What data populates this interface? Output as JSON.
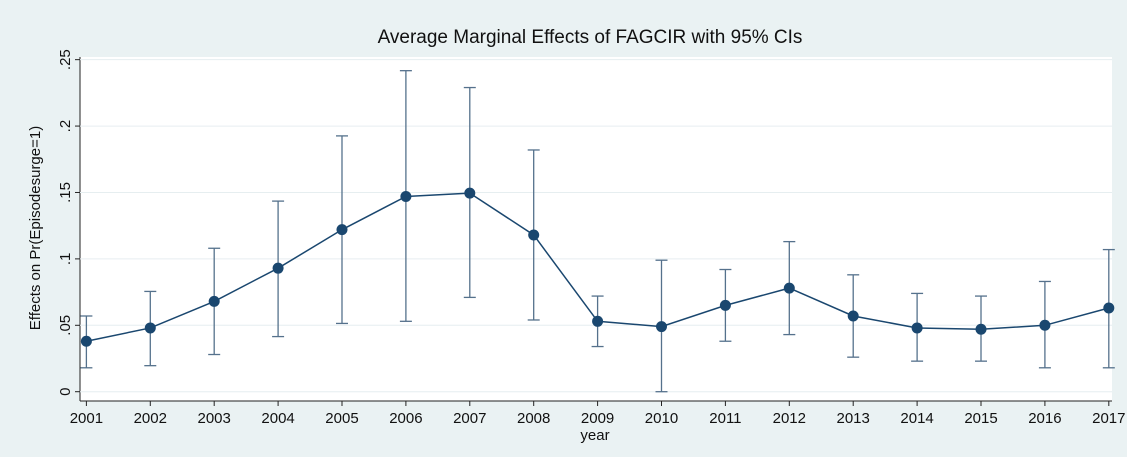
{
  "chart_data": {
    "type": "errorbar-line",
    "title": "Average Marginal Effects of FAGCIR with 95% CIs",
    "x_label": "year",
    "y_label": "Effects on Pr(Episodesurge=1)",
    "x": [
      2001,
      2002,
      2003,
      2004,
      2005,
      2006,
      2007,
      2008,
      2009,
      2010,
      2011,
      2012,
      2013,
      2014,
      2015,
      2016,
      2017
    ],
    "values": [
      0.038,
      0.048,
      0.068,
      0.093,
      0.122,
      0.147,
      0.1495,
      0.118,
      0.053,
      0.049,
      0.065,
      0.078,
      0.057,
      0.048,
      0.047,
      0.05,
      0.063
    ],
    "ci_lower": [
      0.018,
      0.0196,
      0.028,
      0.0415,
      0.0514,
      0.053,
      0.071,
      0.054,
      0.034,
      0,
      0.038,
      0.043,
      0.026,
      0.023,
      0.023,
      0.018,
      0.018
    ],
    "ci_upper": [
      0.057,
      0.0755,
      0.108,
      0.1435,
      0.1926,
      0.2417,
      0.229,
      0.182,
      0.072,
      0.099,
      0.092,
      0.113,
      0.088,
      0.074,
      0.072,
      0.083,
      0.107
    ],
    "color": "#1a476f",
    "ci_color": "#55718c",
    "xlim": [
      2000.9,
      2017.05
    ],
    "xticks": [
      2001,
      2002,
      2003,
      2004,
      2005,
      2006,
      2007,
      2008,
      2009,
      2010,
      2011,
      2012,
      2013,
      2014,
      2015,
      2016,
      2017
    ],
    "ylim": [
      -0.007,
      0.252
    ],
    "yticks": [
      0,
      {
        "value": 0.05,
        "label": ".05"
      },
      {
        "value": 0.1,
        "label": ".1"
      },
      {
        "value": 0.15,
        "label": ".15"
      },
      {
        "value": 0.2,
        "label": ".2"
      },
      {
        "value": 0.25,
        "label": ".25"
      }
    ],
    "grid": true
  }
}
